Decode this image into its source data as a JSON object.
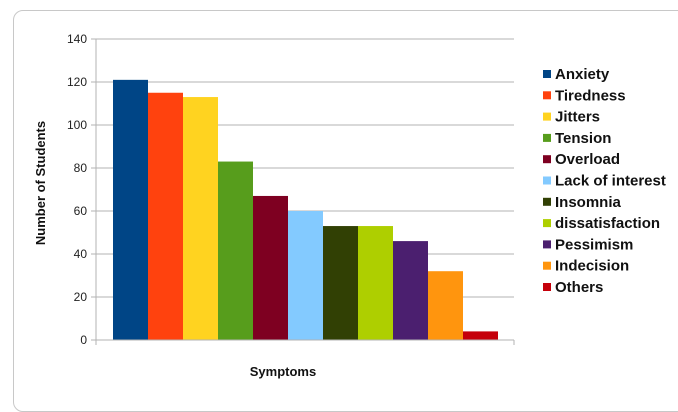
{
  "chart_data": {
    "type": "bar",
    "title": "",
    "xlabel": "Symptoms",
    "ylabel": "Number of Students",
    "ylim": [
      0,
      140
    ],
    "yticks": [
      0,
      20,
      40,
      60,
      80,
      100,
      120,
      140
    ],
    "grid": true,
    "legend_position": "right",
    "categories": [
      "Anxiety",
      "Tiredness",
      "Jitters",
      "Tension",
      "Overload",
      "Lack of interest",
      "Insomnia",
      "dissatisfaction",
      "Pessimism",
      "Indecision",
      "Others"
    ],
    "values": [
      121,
      115,
      113,
      83,
      67,
      60,
      53,
      53,
      46,
      32,
      4
    ],
    "colors": [
      "#004586",
      "#ff420e",
      "#ffd320",
      "#579d1c",
      "#7e0021",
      "#83caff",
      "#314004",
      "#aecf00",
      "#4b1f6f",
      "#ff950e",
      "#c5000b"
    ]
  }
}
